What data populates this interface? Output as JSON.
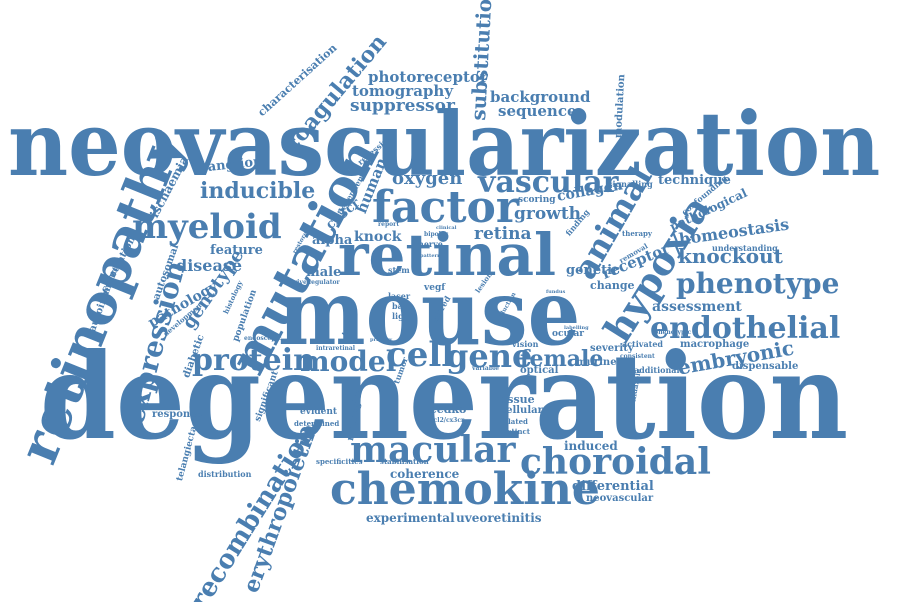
{
  "color": "#4a7eb0",
  "words": [
    "neovascularization",
    "degeneration",
    "mouse",
    "retinal",
    "retinopathy",
    "mutation",
    "chemokine",
    "choroidal",
    "macular",
    "factor",
    "vascular",
    "myeloid",
    "hypoxia",
    "animal",
    "endothelial",
    "phenotype",
    "gene",
    "cell",
    "protein",
    "model",
    "female",
    "expression",
    "coagulation",
    "photoreceptor",
    "tomography",
    "suppressor",
    "substitution",
    "background",
    "sequence",
    "oxygen",
    "inducible",
    "genotype",
    "disease",
    "knockout",
    "embryonic",
    "recombination",
    "erythropoietin",
    "experimental",
    "uveoretinitis",
    "assessment",
    "homeostasis",
    "growth",
    "collagen",
    "retina",
    "knock",
    "feature",
    "pathology",
    "ganglion",
    "ischaemia",
    "characterisation",
    "alpha",
    "cx3cr",
    "human",
    "male",
    "genetic",
    "receptor",
    "change",
    "technique",
    "pathological",
    "dispensable",
    "macrophage",
    "coherence",
    "differential",
    "neovascular",
    "induced",
    "tissue",
    "cellular",
    "cedko",
    "microglia",
    "optical",
    "murine",
    "ocular",
    "vision",
    "severity",
    "evident",
    "determined",
    "distribution",
    "telangiectasia",
    "response",
    "specificities",
    "stabilisation",
    "tumor",
    "additional",
    "activated",
    "diabetic",
    "autosomal",
    "autoimmune",
    "correlation",
    "modulation",
    "signalling",
    "confounding",
    "understanding",
    "therapy",
    "removal",
    "finding",
    "scoring",
    "stem",
    "laser",
    "base",
    "light",
    "vegf",
    "inbred",
    "lesion",
    "nerve",
    "bipolar",
    "target",
    "population",
    "histology",
    "endoscopic",
    "intraretinal",
    "primary",
    "significant",
    "recessive",
    "dependent",
    "restore",
    "derived",
    "regulator",
    "development",
    "variable",
    "related",
    "distinct",
    "ccl2/cx3cr",
    "consistent",
    "phenotypic",
    "pimonidazole",
    "labelling",
    "report",
    "clinical",
    "fundus",
    "reduction",
    "pattern"
  ]
}
